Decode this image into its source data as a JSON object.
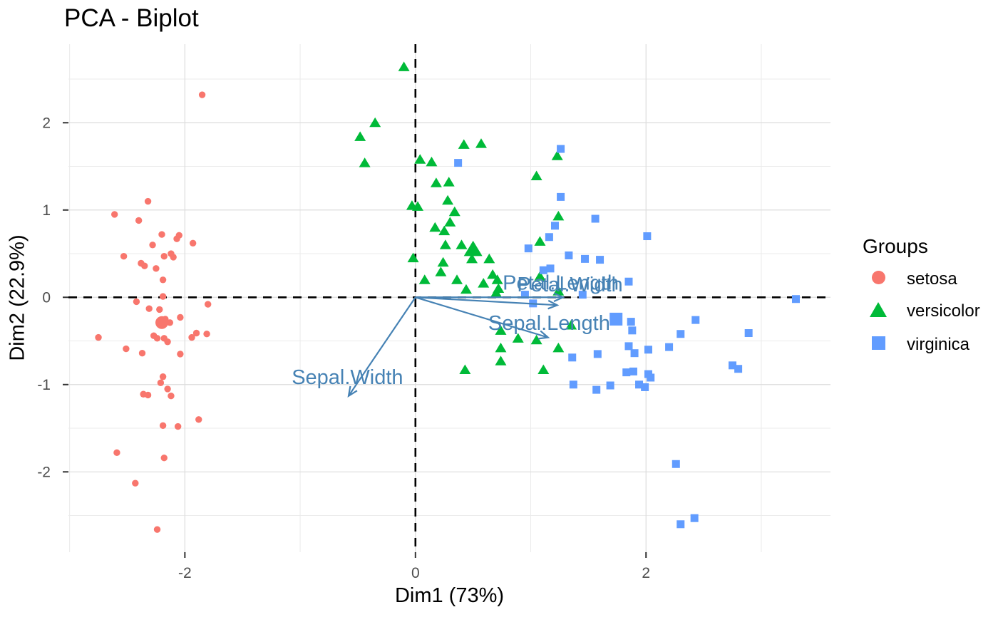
{
  "chart_data": {
    "type": "scatter",
    "title": "PCA - Biplot",
    "xlabel": "Dim1 (73%)",
    "ylabel": "Dim2 (22.9%)",
    "xlim": [
      -3.01,
      3.6
    ],
    "ylim": [
      -2.92,
      2.9
    ],
    "x_major_ticks": [
      -2,
      0,
      2
    ],
    "y_major_ticks": [
      -2,
      -1,
      0,
      1,
      2
    ],
    "x_minor_ticks": [
      -3,
      -1,
      1,
      3
    ],
    "y_minor_ticks": [
      -2.5,
      -1.5,
      -0.5,
      0.5,
      1.5,
      2.5
    ],
    "grid": true,
    "zero_lines": "dashed",
    "legend_position": "right",
    "legend": {
      "title": "Groups",
      "items": [
        {
          "label": "setosa",
          "shape": "circle",
          "color": "#F8766D"
        },
        {
          "label": "versicolor",
          "shape": "triangle",
          "color": "#00BA38"
        },
        {
          "label": "virginica",
          "shape": "square",
          "color": "#619CFF"
        }
      ]
    },
    "arrow_color": "#4682B4",
    "arrows": [
      {
        "label": "Petal.Length",
        "end": [
          1.28,
          0.0
        ],
        "label_pos": [
          1.26,
          0.17
        ]
      },
      {
        "label": "Petal.Width",
        "end": [
          1.23,
          -0.09
        ],
        "label_pos": [
          1.34,
          0.15
        ]
      },
      {
        "label": "Sepal.Length",
        "end": [
          1.15,
          -0.46
        ],
        "label_pos": [
          1.16,
          -0.29
        ]
      },
      {
        "label": "Sepal.Width",
        "end": [
          -0.58,
          -1.13
        ],
        "label_pos": [
          -0.59,
          -0.91
        ]
      }
    ],
    "series": [
      {
        "name": "setosa",
        "shape": "circle",
        "color": "#F8766D",
        "mean": [
          -2.2,
          -0.29
        ],
        "points": [
          [
            -1.85,
            2.32
          ],
          [
            -2.61,
            0.95
          ],
          [
            -2.32,
            1.1
          ],
          [
            -2.4,
            0.88
          ],
          [
            -2.2,
            0.72
          ],
          [
            -2.07,
            0.67
          ],
          [
            -2.05,
            0.71
          ],
          [
            -1.93,
            0.62
          ],
          [
            -2.28,
            0.6
          ],
          [
            -2.53,
            0.47
          ],
          [
            -2.18,
            0.47
          ],
          [
            -2.12,
            0.5
          ],
          [
            -2.1,
            0.46
          ],
          [
            -2.38,
            0.39
          ],
          [
            -2.35,
            0.36
          ],
          [
            -2.25,
            0.33
          ],
          [
            -2.19,
            0.2
          ],
          [
            -2.19,
            0.01
          ],
          [
            -2.42,
            -0.05
          ],
          [
            -1.8,
            -0.08
          ],
          [
            -2.31,
            -0.13
          ],
          [
            -2.22,
            -0.14
          ],
          [
            -2.17,
            -0.25
          ],
          [
            -2.13,
            -0.29
          ],
          [
            -2.04,
            -0.23
          ],
          [
            -2.75,
            -0.46
          ],
          [
            -2.27,
            -0.44
          ],
          [
            -2.24,
            -0.47
          ],
          [
            -2.18,
            -0.47
          ],
          [
            -2.15,
            -0.51
          ],
          [
            -1.94,
            -0.46
          ],
          [
            -1.9,
            -0.41
          ],
          [
            -1.81,
            -0.42
          ],
          [
            -2.51,
            -0.59
          ],
          [
            -2.37,
            -0.64
          ],
          [
            -2.04,
            -0.65
          ],
          [
            -2.19,
            -0.91
          ],
          [
            -2.21,
            -0.98
          ],
          [
            -2.15,
            -1.05
          ],
          [
            -2.36,
            -1.11
          ],
          [
            -2.32,
            -1.12
          ],
          [
            -2.12,
            -1.13
          ],
          [
            -1.88,
            -1.4
          ],
          [
            -2.19,
            -1.47
          ],
          [
            -2.06,
            -1.48
          ],
          [
            -2.59,
            -1.78
          ],
          [
            -2.18,
            -1.84
          ],
          [
            -2.43,
            -2.13
          ],
          [
            -2.24,
            -2.66
          ]
        ]
      },
      {
        "name": "versicolor",
        "shape": "triangle",
        "color": "#00BA38",
        "mean": [
          0.5,
          0.55
        ],
        "points": [
          [
            -0.1,
            2.64
          ],
          [
            -0.35,
            2.0
          ],
          [
            -0.48,
            1.84
          ],
          [
            -0.44,
            1.54
          ],
          [
            0.04,
            1.58
          ],
          [
            0.14,
            1.55
          ],
          [
            0.42,
            1.75
          ],
          [
            0.57,
            1.76
          ],
          [
            0.18,
            1.31
          ],
          [
            0.29,
            1.32
          ],
          [
            0.28,
            1.11
          ],
          [
            -0.03,
            1.05
          ],
          [
            0.02,
            1.04
          ],
          [
            0.34,
            0.98
          ],
          [
            0.3,
            0.86
          ],
          [
            0.17,
            0.8
          ],
          [
            0.25,
            0.76
          ],
          [
            1.05,
            1.39
          ],
          [
            1.23,
            1.62
          ],
          [
            1.24,
            0.93
          ],
          [
            1.08,
            0.64
          ],
          [
            0.26,
            0.6
          ],
          [
            0.4,
            0.6
          ],
          [
            0.49,
            0.44
          ],
          [
            0.64,
            0.44
          ],
          [
            -0.02,
            0.45
          ],
          [
            0.24,
            0.4
          ],
          [
            0.22,
            0.29
          ],
          [
            0.08,
            0.2
          ],
          [
            0.36,
            0.2
          ],
          [
            0.67,
            0.26
          ],
          [
            0.44,
            0.09
          ],
          [
            0.59,
            0.16
          ],
          [
            0.71,
            0.2
          ],
          [
            0.72,
            0.1
          ],
          [
            0.7,
            0.05
          ],
          [
            1.08,
            0.24
          ],
          [
            1.24,
            0.07
          ],
          [
            0.74,
            -0.38
          ],
          [
            0.89,
            -0.47
          ],
          [
            1.05,
            -0.49
          ],
          [
            1.35,
            -0.32
          ],
          [
            0.74,
            -0.58
          ],
          [
            1.24,
            -0.58
          ],
          [
            0.74,
            -0.73
          ],
          [
            0.43,
            -0.83
          ],
          [
            1.11,
            -0.83
          ]
        ]
      },
      {
        "name": "virginica",
        "shape": "square",
        "color": "#619CFF",
        "mean": [
          1.74,
          -0.25
        ],
        "points": [
          [
            1.26,
            1.7
          ],
          [
            0.37,
            1.54
          ],
          [
            1.26,
            1.15
          ],
          [
            1.56,
            0.9
          ],
          [
            1.21,
            0.82
          ],
          [
            1.16,
            0.69
          ],
          [
            2.01,
            0.7
          ],
          [
            0.98,
            0.56
          ],
          [
            1.33,
            0.48
          ],
          [
            1.47,
            0.44
          ],
          [
            1.6,
            0.43
          ],
          [
            1.11,
            0.31
          ],
          [
            1.17,
            0.33
          ],
          [
            1.85,
            0.18
          ],
          [
            0.95,
            0.03
          ],
          [
            1.45,
            0.03
          ],
          [
            1.02,
            -0.07
          ],
          [
            3.3,
            -0.02
          ],
          [
            1.87,
            -0.28
          ],
          [
            1.88,
            -0.38
          ],
          [
            2.43,
            -0.26
          ],
          [
            2.3,
            -0.42
          ],
          [
            2.89,
            -0.41
          ],
          [
            1.85,
            -0.56
          ],
          [
            1.9,
            -0.64
          ],
          [
            2.02,
            -0.6
          ],
          [
            2.2,
            -0.57
          ],
          [
            1.36,
            -0.69
          ],
          [
            1.58,
            -0.65
          ],
          [
            1.83,
            -0.86
          ],
          [
            1.89,
            -0.85
          ],
          [
            2.02,
            -0.88
          ],
          [
            2.04,
            -0.92
          ],
          [
            2.75,
            -0.78
          ],
          [
            2.8,
            -0.82
          ],
          [
            1.37,
            -1.0
          ],
          [
            1.69,
            -1.01
          ],
          [
            1.57,
            -1.06
          ],
          [
            1.94,
            -1.0
          ],
          [
            1.99,
            -1.03
          ],
          [
            2.26,
            -1.91
          ],
          [
            2.3,
            -2.6
          ],
          [
            2.42,
            -2.53
          ]
        ]
      }
    ]
  }
}
